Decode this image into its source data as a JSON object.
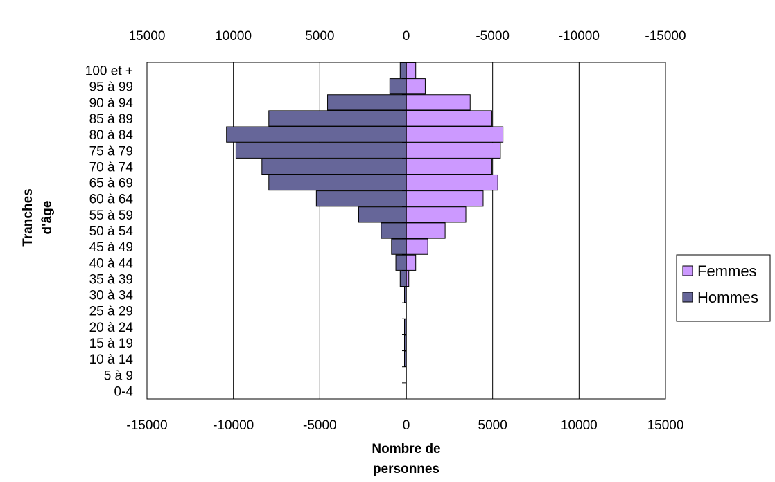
{
  "chart_data": {
    "type": "bar",
    "orientation": "horizontal",
    "title": "",
    "xlabel": [
      "Nombre de",
      "personnes"
    ],
    "ylabel": [
      "Tranches",
      "d'âge"
    ],
    "xlim": [
      -15000,
      15000
    ],
    "x_ticks_bottom": [
      "-15000",
      "-10000",
      "-5000",
      "0",
      "5000",
      "10000",
      "15000"
    ],
    "x_ticks_top": [
      "15000",
      "10000",
      "5000",
      "0",
      "-5000",
      "-10000",
      "-15000"
    ],
    "categories": [
      "0-4",
      "5 à 9",
      "10 à 14",
      "15 à 19",
      "20 à 24",
      "25 à 29",
      "30 à 34",
      "35 à 39",
      "40 à 44",
      "45 à 49",
      "50 à 54",
      "55 à 59",
      "60 à 64",
      "65 à 69",
      "70 à 74",
      "75 à 79",
      "80 à 84",
      "85 à 89",
      "90 à 94",
      "95 à 99",
      "100 et +"
    ],
    "series": [
      {
        "name": "Femmes",
        "color": "#CC99FF",
        "values": [
          0,
          0,
          0,
          0,
          0,
          0,
          0,
          150,
          550,
          1250,
          2250,
          3450,
          4450,
          5300,
          4950,
          5450,
          5600,
          4950,
          3700,
          1100,
          550
        ]
      },
      {
        "name": "Hommes",
        "color": "#666699",
        "values": [
          0,
          0,
          -100,
          -100,
          -100,
          0,
          -100,
          -350,
          -600,
          -850,
          -1450,
          -2750,
          -5200,
          -7950,
          -8350,
          -9850,
          -10400,
          -7950,
          -4550,
          -950,
          -350
        ]
      }
    ],
    "legend": {
      "position": "right",
      "items": [
        {
          "label": "Femmes",
          "color": "#CC99FF"
        },
        {
          "label": "Hommes",
          "color": "#666699"
        }
      ]
    },
    "grid": {
      "vertical": true,
      "horizontal": false
    }
  }
}
